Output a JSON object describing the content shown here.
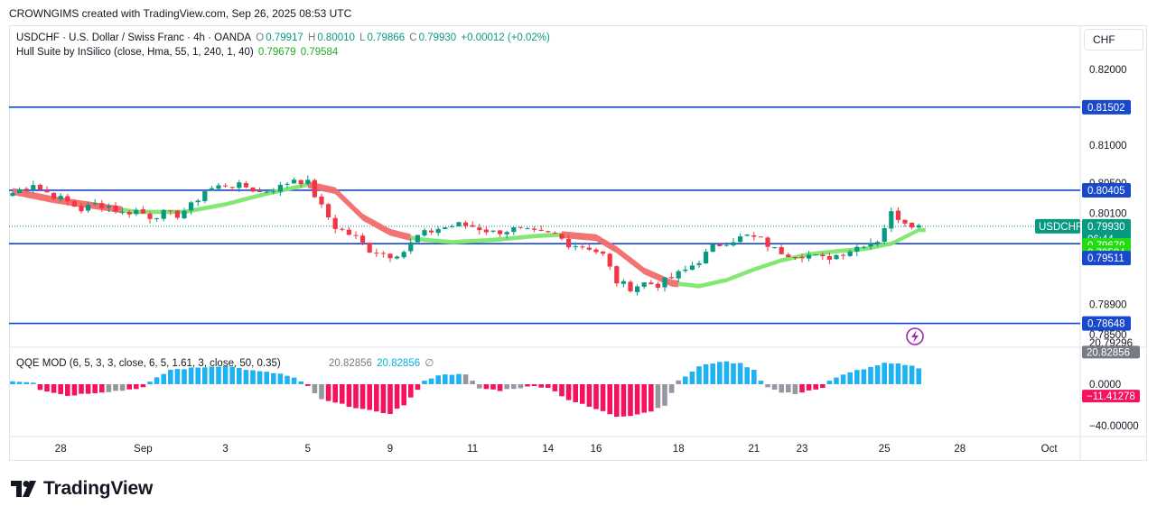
{
  "header": {
    "credit": "CROWNGIMS created with TradingView.com, Sep 26, 2025 08:53 UTC"
  },
  "legend": {
    "symbol": "USDCHF · U.S. Dollar / Swiss Franc · 4h · OANDA",
    "o_label": "O",
    "o_value": "0.79917",
    "h_label": "H",
    "h_value": "0.80010",
    "l_label": "L",
    "l_value": "0.79866",
    "c_label": "C",
    "c_value": "0.79930",
    "change": "+0.00012 (+0.02%)",
    "hull_name": "Hull Suite by InSilico (close, Hma, 55, 1, 240, 1, 40)",
    "hull_v1": "0.79679",
    "hull_v2": "0.79584",
    "qqe_name": "QQE MOD (6, 5, 3, 3, close, 6, 5, 1.61, 3, close, 50, 0.35)",
    "qqe_v1": "20.82856",
    "qqe_v2": "20.82856",
    "qqe_v3": "∅"
  },
  "currency_button": "CHF",
  "logo": {
    "text": "TradingView",
    "icon": "tradingview-logo-icon"
  },
  "colors": {
    "up": "#089981",
    "down": "#f23645",
    "hull_up": "#7ee66b",
    "hull_down": "#f26b6b",
    "hline": "#1848cc",
    "qqe_blue": "#1eb3f0",
    "qqe_red": "#f5125e",
    "qqe_gray": "#9598a1"
  },
  "chart_data": {
    "type": "candlestick",
    "symbol": "USDCHF",
    "timeframe": "4h",
    "price_axis": {
      "ticks": [
        {
          "value": 0.82,
          "label": "0.82000"
        },
        {
          "value": 0.81,
          "label": "0.81000"
        },
        {
          "value": 0.805,
          "label": "0.80500"
        },
        {
          "value": 0.801,
          "label": "0.80100"
        },
        {
          "value": 0.789,
          "label": "0.78900"
        },
        {
          "value": 0.785,
          "label": "0.78500"
        }
      ],
      "ylim": [
        0.784,
        0.824
      ]
    },
    "horizontal_lines": [
      {
        "value": 0.81502,
        "label": "0.81502"
      },
      {
        "value": 0.80405,
        "label": "0.80405"
      },
      {
        "value": 0.797,
        "label": ""
      },
      {
        "value": 0.78648,
        "label": "0.78648"
      }
    ],
    "price_tags": [
      {
        "value": 0.7993,
        "label": "0.79930",
        "sub": "06:44",
        "symbol": "USDCHF",
        "color": "#089981"
      },
      {
        "value": 0.79679,
        "label": "0.79679",
        "color": "#22dd11"
      },
      {
        "value": 0.79584,
        "label": "0.79584",
        "color": "#22dd11"
      },
      {
        "value": 0.79511,
        "label": "0.79511",
        "color": "#1848cc"
      }
    ],
    "x_axis_labels": [
      {
        "i": 7,
        "label": "28"
      },
      {
        "i": 19,
        "label": "Sep"
      },
      {
        "i": 31,
        "label": "3"
      },
      {
        "i": 43,
        "label": "5"
      },
      {
        "i": 55,
        "label": "9"
      },
      {
        "i": 67,
        "label": "11"
      },
      {
        "i": 78,
        "label": "14"
      },
      {
        "i": 85,
        "label": "16"
      },
      {
        "i": 97,
        "label": "18"
      },
      {
        "i": 108,
        "label": "21"
      },
      {
        "i": 115,
        "label": "23"
      },
      {
        "i": 127,
        "label": "25"
      },
      {
        "i": 138,
        "label": "28"
      },
      {
        "i": 151,
        "label": "Oct"
      }
    ],
    "close_keypoints": [
      [
        0,
        0.8037
      ],
      [
        3,
        0.805
      ],
      [
        4,
        0.8042
      ],
      [
        8,
        0.8025
      ],
      [
        10,
        0.8015
      ],
      [
        12,
        0.8022
      ],
      [
        14,
        0.802
      ],
      [
        16,
        0.801
      ],
      [
        18,
        0.8014
      ],
      [
        20,
        0.8006
      ],
      [
        22,
        0.801
      ],
      [
        24,
        0.8008
      ],
      [
        26,
        0.802
      ],
      [
        28,
        0.804
      ],
      [
        31,
        0.8048
      ],
      [
        34,
        0.8045
      ],
      [
        36,
        0.8038
      ],
      [
        39,
        0.8045
      ],
      [
        41,
        0.8056
      ],
      [
        43,
        0.805
      ],
      [
        45,
        0.8018
      ],
      [
        47,
        0.7992
      ],
      [
        50,
        0.7978
      ],
      [
        52,
        0.7962
      ],
      [
        55,
        0.7955
      ],
      [
        57,
        0.796
      ],
      [
        59,
        0.798
      ],
      [
        62,
        0.799
      ],
      [
        65,
        0.7995
      ],
      [
        67,
        0.7993
      ],
      [
        70,
        0.7985
      ],
      [
        73,
        0.7989
      ],
      [
        76,
        0.7984
      ],
      [
        79,
        0.7982
      ],
      [
        81,
        0.797
      ],
      [
        84,
        0.7965
      ],
      [
        86,
        0.7955
      ],
      [
        88,
        0.792
      ],
      [
        90,
        0.7912
      ],
      [
        92,
        0.7918
      ],
      [
        94,
        0.7916
      ],
      [
        96,
        0.7925
      ],
      [
        98,
        0.7935
      ],
      [
        100,
        0.7948
      ],
      [
        102,
        0.7965
      ],
      [
        104,
        0.7973
      ],
      [
        107,
        0.798
      ],
      [
        109,
        0.7975
      ],
      [
        111,
        0.7962
      ],
      [
        113,
        0.7957
      ],
      [
        116,
        0.7955
      ],
      [
        118,
        0.795
      ],
      [
        120,
        0.7955
      ],
      [
        122,
        0.7962
      ],
      [
        124,
        0.797
      ],
      [
        126,
        0.7975
      ],
      [
        128,
        0.801
      ],
      [
        130,
        0.8
      ],
      [
        132,
        0.7993
      ]
    ],
    "candle_count": 133,
    "hull_keypoints": [
      [
        0,
        0.8039
      ],
      [
        6,
        0.8028
      ],
      [
        12,
        0.802
      ],
      [
        18,
        0.8012
      ],
      [
        25,
        0.8012
      ],
      [
        31,
        0.8022
      ],
      [
        37,
        0.8036
      ],
      [
        43,
        0.8048
      ],
      [
        47,
        0.804
      ],
      [
        51,
        0.8005
      ],
      [
        55,
        0.7985
      ],
      [
        59,
        0.7976
      ],
      [
        64,
        0.7972
      ],
      [
        70,
        0.7975
      ],
      [
        76,
        0.798
      ],
      [
        80,
        0.7982
      ],
      [
        85,
        0.7978
      ],
      [
        88,
        0.7962
      ],
      [
        92,
        0.7934
      ],
      [
        96,
        0.7918
      ],
      [
        100,
        0.7914
      ],
      [
        104,
        0.7922
      ],
      [
        108,
        0.7936
      ],
      [
        112,
        0.7948
      ],
      [
        116,
        0.7956
      ],
      [
        120,
        0.796
      ],
      [
        124,
        0.7963
      ],
      [
        128,
        0.797
      ],
      [
        132,
        0.7988
      ]
    ],
    "hull_trend": [
      [
        0,
        16,
        "down"
      ],
      [
        16,
        43,
        "up"
      ],
      [
        43,
        58,
        "down"
      ],
      [
        58,
        80,
        "up"
      ],
      [
        80,
        97,
        "down"
      ],
      [
        97,
        133,
        "up"
      ]
    ],
    "qqe": {
      "axis_ticks": [
        {
          "value": 20.79296,
          "label": "20.79296"
        },
        {
          "value": 0.0,
          "label": "0.0000"
        },
        {
          "value": -40.0,
          "label": "−40.00000"
        }
      ],
      "tags": [
        {
          "value": 31.0,
          "label": "20.82856",
          "color": "#787b86"
        },
        {
          "value": -11.41278,
          "label": "−11.41278",
          "color": "#f5125e"
        }
      ],
      "ylim": [
        -44,
        36
      ],
      "histogram_keypoints": [
        [
          0,
          3
        ],
        [
          3,
          2
        ],
        [
          4,
          -5
        ],
        [
          8,
          -11
        ],
        [
          12,
          -8
        ],
        [
          16,
          -6
        ],
        [
          19,
          -3
        ],
        [
          20,
          2
        ],
        [
          23,
          14
        ],
        [
          27,
          16
        ],
        [
          31,
          18
        ],
        [
          35,
          13
        ],
        [
          39,
          10
        ],
        [
          41,
          6
        ],
        [
          43,
          -2
        ],
        [
          45,
          -15
        ],
        [
          49,
          -21
        ],
        [
          53,
          -27
        ],
        [
          55,
          -28
        ],
        [
          57,
          -20
        ],
        [
          59,
          -6
        ],
        [
          60,
          4
        ],
        [
          63,
          10
        ],
        [
          66,
          9
        ],
        [
          67,
          3
        ],
        [
          68,
          -4
        ],
        [
          71,
          -6
        ],
        [
          73,
          -4
        ],
        [
          76,
          -2
        ],
        [
          78,
          -3
        ],
        [
          81,
          -15
        ],
        [
          85,
          -24
        ],
        [
          88,
          -31
        ],
        [
          90,
          -30
        ],
        [
          93,
          -26
        ],
        [
          95,
          -20
        ],
        [
          96,
          -8
        ],
        [
          97,
          3
        ],
        [
          100,
          17
        ],
        [
          103,
          22
        ],
        [
          106,
          20
        ],
        [
          108,
          14
        ],
        [
          109,
          4
        ],
        [
          110,
          -3
        ],
        [
          112,
          -8
        ],
        [
          114,
          -9
        ],
        [
          116,
          -6
        ],
        [
          118,
          -4
        ],
        [
          119,
          3
        ],
        [
          122,
          12
        ],
        [
          125,
          16
        ],
        [
          127,
          20
        ],
        [
          130,
          19
        ],
        [
          132,
          16
        ]
      ],
      "gray_ranges": [
        [
          14,
          16
        ],
        [
          44,
          45
        ],
        [
          66,
          68
        ],
        [
          72,
          74
        ],
        [
          94,
          97
        ],
        [
          110,
          114
        ]
      ]
    }
  }
}
